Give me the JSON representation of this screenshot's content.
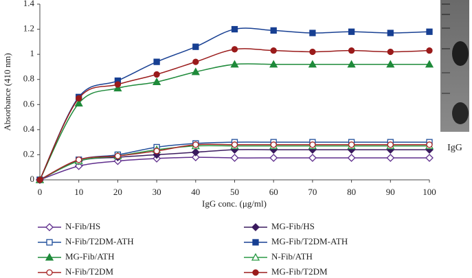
{
  "chart_data": {
    "type": "line",
    "x_label": "IgG conc. (μg/ml)",
    "y_label": "Absorbance (410 nm)",
    "image_label": "IgG",
    "x": [
      0,
      10,
      20,
      30,
      40,
      50,
      60,
      70,
      80,
      90,
      100
    ],
    "xlim": [
      0,
      100
    ],
    "xticks": [
      0,
      10,
      20,
      30,
      40,
      50,
      60,
      70,
      80,
      90,
      100
    ],
    "ylim": [
      0,
      1.4
    ],
    "yticks": [
      0,
      0.2,
      0.4,
      0.6,
      0.8,
      1,
      1.2,
      1.4
    ],
    "legend": "bottom",
    "series": [
      {
        "name": "N-Fib/HS",
        "color": "#5e2d8c",
        "marker": "diamond",
        "filled": false,
        "values": [
          0,
          0.11,
          0.15,
          0.17,
          0.18,
          0.175,
          0.175,
          0.175,
          0.175,
          0.175,
          0.175
        ]
      },
      {
        "name": "MG-Fib/HS",
        "color": "#3a1a5e",
        "marker": "diamond",
        "filled": true,
        "values": [
          0,
          0.15,
          0.18,
          0.2,
          0.22,
          0.24,
          0.24,
          0.24,
          0.24,
          0.24,
          0.24
        ]
      },
      {
        "name": "N-Fib/T2DM-ATH",
        "color": "#1f4e9a",
        "marker": "square",
        "filled": false,
        "values": [
          0,
          0.16,
          0.2,
          0.26,
          0.29,
          0.3,
          0.3,
          0.3,
          0.3,
          0.3,
          0.3
        ]
      },
      {
        "name": "MG-Fib/T2DM-ATH",
        "color": "#173f92",
        "marker": "square",
        "filled": true,
        "values": [
          0,
          0.66,
          0.79,
          0.94,
          1.06,
          1.2,
          1.19,
          1.17,
          1.18,
          1.17,
          1.18
        ]
      },
      {
        "name": "MG-Fib/ATH",
        "color": "#1e8a3a",
        "marker": "triangle",
        "filled": true,
        "values": [
          0,
          0.61,
          0.73,
          0.78,
          0.86,
          0.92,
          0.92,
          0.92,
          0.92,
          0.92,
          0.92
        ]
      },
      {
        "name": "N-Fib/ATH",
        "color": "#2a9a45",
        "marker": "triangle",
        "filled": false,
        "values": [
          0,
          0.15,
          0.19,
          0.24,
          0.27,
          0.27,
          0.27,
          0.27,
          0.27,
          0.27,
          0.27
        ]
      },
      {
        "name": "N-Fib/T2DM",
        "color": "#a62424",
        "marker": "circle",
        "filled": false,
        "values": [
          0,
          0.16,
          0.19,
          0.23,
          0.28,
          0.28,
          0.28,
          0.28,
          0.28,
          0.28,
          0.28
        ]
      },
      {
        "name": "MG-Fib/T2DM",
        "color": "#9a1b1b",
        "marker": "circle",
        "filled": true,
        "values": [
          0,
          0.65,
          0.76,
          0.84,
          0.94,
          1.04,
          1.03,
          1.02,
          1.03,
          1.02,
          1.03
        ]
      }
    ]
  }
}
